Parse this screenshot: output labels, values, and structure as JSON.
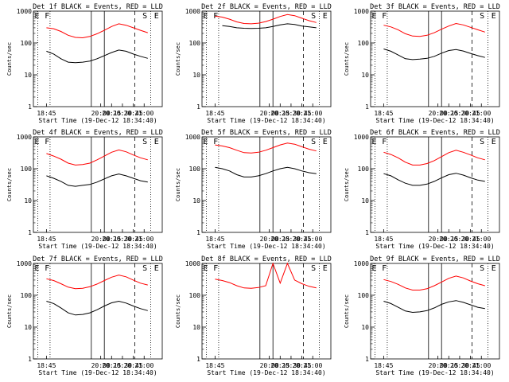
{
  "figure": {
    "xlabel": "Start Time (19-Dec-12 18:34:40)",
    "ylabel": "Counts/sec",
    "x_ticks": [
      "18:45",
      "20:00",
      "20:15",
      "20:30",
      "20:45",
      "21:00"
    ],
    "y_ticks": [
      "1",
      "10",
      "100",
      "1000"
    ],
    "series_colors": {
      "events": "#000000",
      "lld": "#ff0000"
    }
  },
  "chart_data": [
    {
      "type": "line",
      "title": "Det 1f BLACK = Events, RED = LLD",
      "y_scale": "log",
      "ylim": [
        1,
        1000
      ],
      "x_minutes": [
        0,
        10,
        20,
        30,
        40,
        50,
        60,
        70,
        80,
        90,
        100,
        110,
        120,
        130,
        140,
        150
      ],
      "series": [
        {
          "name": "Events",
          "values": [
            55,
            45,
            32,
            25,
            24,
            25,
            27,
            32,
            40,
            50,
            60,
            55,
            45,
            38,
            33,
            null
          ]
        },
        {
          "name": "LLD",
          "values": [
            300,
            280,
            230,
            175,
            150,
            145,
            160,
            195,
            250,
            330,
            400,
            360,
            300,
            250,
            210,
            null
          ]
        }
      ],
      "markers": [
        "E",
        "F",
        "S",
        "E"
      ]
    },
    {
      "type": "line",
      "title": "Det 2f BLACK = Events, RED = LLD",
      "y_scale": "log",
      "ylim": [
        1,
        1000
      ],
      "x_minutes": [
        0,
        10,
        20,
        30,
        40,
        50,
        60,
        70,
        80,
        90,
        100,
        110,
        120,
        130,
        140,
        150
      ],
      "series": [
        {
          "name": "Events",
          "values": [
            null,
            350,
            330,
            300,
            290,
            285,
            290,
            300,
            330,
            370,
            400,
            380,
            340,
            320,
            300,
            null
          ]
        },
        {
          "name": "LLD",
          "values": [
            700,
            650,
            560,
            460,
            410,
            400,
            420,
            470,
            560,
            680,
            780,
            720,
            600,
            500,
            440,
            null
          ]
        }
      ],
      "markers": [
        "E",
        "F",
        "S",
        "E"
      ]
    },
    {
      "type": "line",
      "title": "Det 3f BLACK = Events, RED = LLD",
      "y_scale": "log",
      "ylim": [
        1,
        1000
      ],
      "x_minutes": [
        0,
        10,
        20,
        30,
        40,
        50,
        60,
        70,
        80,
        90,
        100,
        110,
        120,
        130,
        140,
        150
      ],
      "series": [
        {
          "name": "Events",
          "values": [
            65,
            55,
            42,
            32,
            30,
            31,
            33,
            38,
            48,
            58,
            62,
            56,
            47,
            40,
            35,
            null
          ]
        },
        {
          "name": "LLD",
          "values": [
            360,
            320,
            260,
            195,
            165,
            160,
            175,
            210,
            270,
            340,
            410,
            370,
            310,
            260,
            220,
            null
          ]
        }
      ],
      "markers": [
        "E",
        "F",
        "S",
        "E"
      ]
    },
    {
      "type": "line",
      "title": "Det 4f BLACK = Events, RED = LLD",
      "y_scale": "log",
      "ylim": [
        1,
        1000
      ],
      "x_minutes": [
        0,
        10,
        20,
        30,
        40,
        50,
        60,
        70,
        80,
        90,
        100,
        110,
        120,
        130,
        140,
        150
      ],
      "series": [
        {
          "name": "Events",
          "values": [
            60,
            50,
            40,
            30,
            28,
            30,
            32,
            38,
            48,
            60,
            68,
            60,
            50,
            42,
            38,
            null
          ]
        },
        {
          "name": "LLD",
          "values": [
            300,
            250,
            200,
            150,
            130,
            135,
            150,
            190,
            250,
            330,
            390,
            340,
            270,
            220,
            190,
            null
          ]
        }
      ],
      "markers": [
        "E",
        "F",
        "S",
        "E"
      ]
    },
    {
      "type": "line",
      "title": "Det 5f BLACK = Events, RED = LLD",
      "y_scale": "log",
      "ylim": [
        1,
        1000
      ],
      "x_minutes": [
        0,
        10,
        20,
        30,
        40,
        50,
        60,
        70,
        80,
        90,
        100,
        110,
        120,
        130,
        140,
        150
      ],
      "series": [
        {
          "name": "Events",
          "values": [
            110,
            100,
            85,
            65,
            55,
            55,
            60,
            70,
            85,
            100,
            110,
            100,
            85,
            75,
            70,
            null
          ]
        },
        {
          "name": "LLD",
          "values": [
            560,
            520,
            460,
            380,
            320,
            310,
            330,
            380,
            460,
            560,
            640,
            590,
            490,
            410,
            360,
            null
          ]
        }
      ],
      "markers": [
        "E",
        "F",
        "S",
        "E"
      ]
    },
    {
      "type": "line",
      "title": "Det 6f BLACK = Events, RED = LLD",
      "y_scale": "log",
      "ylim": [
        1,
        1000
      ],
      "x_minutes": [
        0,
        10,
        20,
        30,
        40,
        50,
        60,
        70,
        80,
        90,
        100,
        110,
        120,
        130,
        140,
        150
      ],
      "series": [
        {
          "name": "Events",
          "values": [
            70,
            60,
            45,
            35,
            30,
            30,
            33,
            40,
            52,
            65,
            72,
            63,
            52,
            44,
            40,
            null
          ]
        },
        {
          "name": "LLD",
          "values": [
            330,
            280,
            220,
            160,
            130,
            130,
            145,
            180,
            240,
            320,
            380,
            330,
            270,
            220,
            190,
            null
          ]
        }
      ],
      "markers": [
        "E",
        "F",
        "S",
        "E"
      ]
    },
    {
      "type": "line",
      "title": "Det 7f BLACK = Events, RED = LLD",
      "y_scale": "log",
      "ylim": [
        1,
        1000
      ],
      "x_minutes": [
        0,
        10,
        20,
        30,
        40,
        50,
        60,
        70,
        80,
        90,
        100,
        110,
        120,
        130,
        140,
        150
      ],
      "series": [
        {
          "name": "Events",
          "values": [
            65,
            55,
            40,
            28,
            24,
            25,
            28,
            35,
            46,
            58,
            65,
            57,
            46,
            38,
            33,
            null
          ]
        },
        {
          "name": "LLD",
          "values": [
            330,
            290,
            230,
            180,
            160,
            165,
            185,
            225,
            290,
            370,
            430,
            380,
            300,
            240,
            210,
            null
          ]
        }
      ],
      "markers": [
        "E",
        "F",
        "S",
        "E"
      ]
    },
    {
      "type": "line",
      "title": "Det 8f BLACK = Events, RED = LLD",
      "y_scale": "log",
      "ylim": [
        1,
        1000
      ],
      "x_minutes": [
        0,
        10,
        20,
        30,
        40,
        50,
        60,
        70,
        80,
        90,
        100,
        110,
        120,
        130,
        140,
        150
      ],
      "series": [
        {
          "name": "LLD",
          "values": [
            320,
            290,
            250,
            200,
            170,
            165,
            175,
            200,
            1000,
            240,
            1000,
            300,
            230,
            190,
            170,
            null
          ]
        }
      ],
      "markers": [
        "E",
        "F",
        "S",
        "E"
      ]
    },
    {
      "type": "line",
      "title": "Det 9f BLACK = Events, RED = LLD",
      "y_scale": "log",
      "ylim": [
        1,
        1000
      ],
      "x_minutes": [
        0,
        10,
        20,
        30,
        40,
        50,
        60,
        70,
        80,
        90,
        100,
        110,
        120,
        130,
        140,
        150
      ],
      "series": [
        {
          "name": "Events",
          "values": [
            65,
            55,
            42,
            32,
            29,
            30,
            33,
            40,
            52,
            62,
            68,
            60,
            50,
            42,
            38,
            null
          ]
        },
        {
          "name": "LLD",
          "values": [
            310,
            270,
            220,
            170,
            145,
            145,
            160,
            200,
            260,
            340,
            400,
            350,
            280,
            230,
            200,
            null
          ]
        }
      ],
      "markers": [
        "E",
        "F",
        "S",
        "E"
      ]
    }
  ]
}
